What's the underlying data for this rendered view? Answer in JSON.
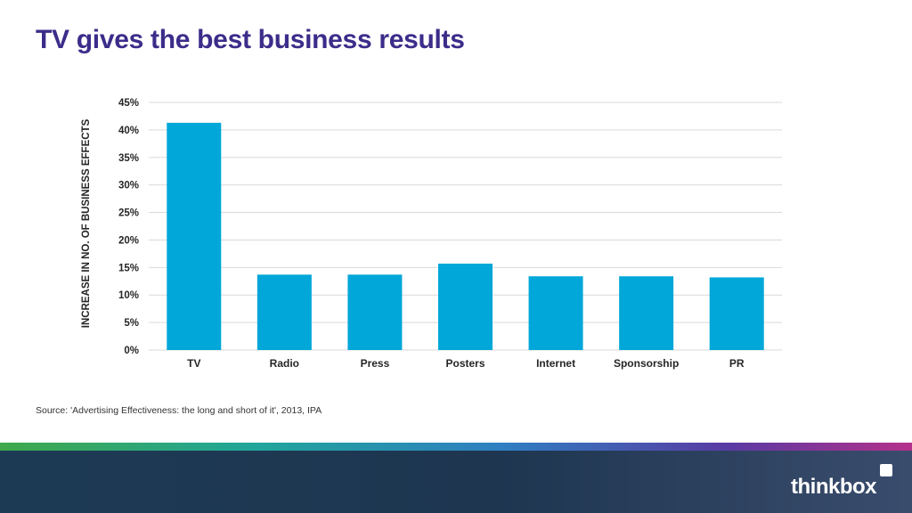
{
  "slide": {
    "title": "TV gives the best business results",
    "source": "Source: 'Advertising Effectiveness: the long and short of it', 2013, IPA",
    "logo_text": "thinkbox"
  },
  "colors": {
    "title": "#3b2d8a",
    "bar": "#00a7d8",
    "grid": "#d9d9d9",
    "footer": "#1e3650"
  },
  "chart_data": {
    "type": "bar",
    "categories": [
      "TV",
      "Radio",
      "Press",
      "Posters",
      "Internet",
      "Sponsorship",
      "PR"
    ],
    "values": [
      41.3,
      13.7,
      13.7,
      15.7,
      13.4,
      13.4,
      13.2
    ],
    "ylabel": "INCREASE IN NO. OF BUSINESS EFFECTS",
    "xlabel": "",
    "ylim": [
      0,
      45
    ],
    "yticks": [
      "0%",
      "5%",
      "10%",
      "15%",
      "20%",
      "25%",
      "30%",
      "35%",
      "40%",
      "45%"
    ],
    "ytick_values": [
      0,
      5,
      10,
      15,
      20,
      25,
      30,
      35,
      40,
      45
    ],
    "grid": true,
    "legend": "none"
  }
}
